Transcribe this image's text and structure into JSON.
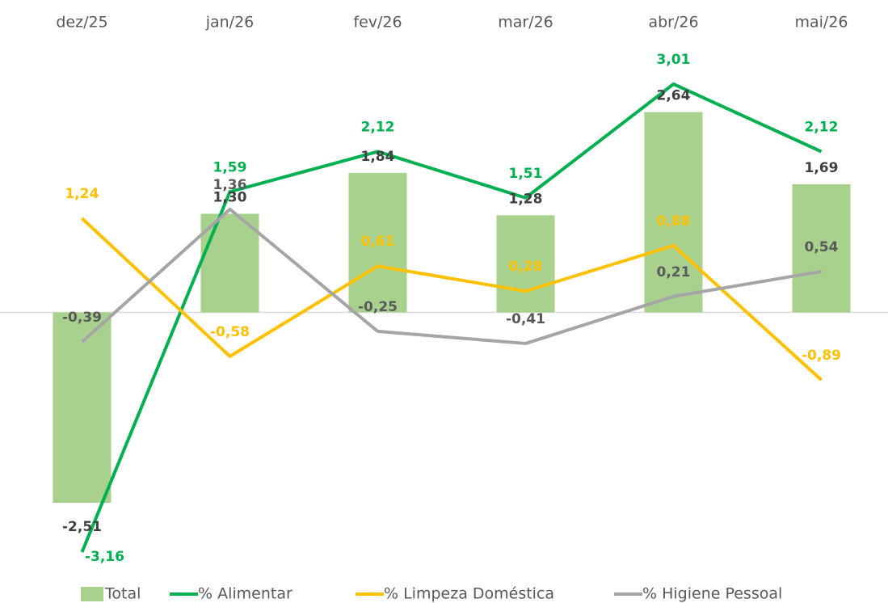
{
  "chart_data": {
    "type": "combo",
    "categories": [
      "dez/25",
      "jan/26",
      "fev/26",
      "mar/26",
      "abr/26",
      "mai/26"
    ],
    "series": [
      {
        "name": "Total",
        "type": "bar",
        "color": "#a9d18e",
        "label_color": "#404040",
        "values": [
          -2.51,
          1.3,
          1.84,
          1.28,
          2.64,
          1.69
        ],
        "value_labels": [
          "-2,51",
          "1,30",
          "1,84",
          "1,28",
          "2,64",
          "1,69"
        ]
      },
      {
        "name": "% Alimentar",
        "type": "line",
        "color": "#00b050",
        "label_color": "#00b050",
        "values": [
          -3.16,
          1.59,
          2.12,
          1.51,
          3.01,
          2.12
        ],
        "value_labels": [
          "-3,16",
          "1,59",
          "2,12",
          "1,51",
          "3,01",
          "2,12"
        ]
      },
      {
        "name": "% Limpeza Doméstica",
        "type": "line",
        "color": "#ffc000",
        "label_color": "#ffc000",
        "values": [
          1.24,
          -0.58,
          0.61,
          0.28,
          0.88,
          -0.89
        ],
        "value_labels": [
          "1,24",
          "-0,58",
          "0,61",
          "0,28",
          "0,88",
          "-0,89"
        ]
      },
      {
        "name": "% Higiene Pessoal",
        "type": "line",
        "color": "#a5a5a5",
        "label_color": "#595959",
        "values": [
          -0.39,
          1.36,
          -0.25,
          -0.41,
          0.21,
          0.54
        ],
        "value_labels": [
          "-0,39",
          "1,36",
          "-0,25",
          "-0,41",
          "0,21",
          "0,54"
        ]
      }
    ],
    "legend": "bottom"
  }
}
